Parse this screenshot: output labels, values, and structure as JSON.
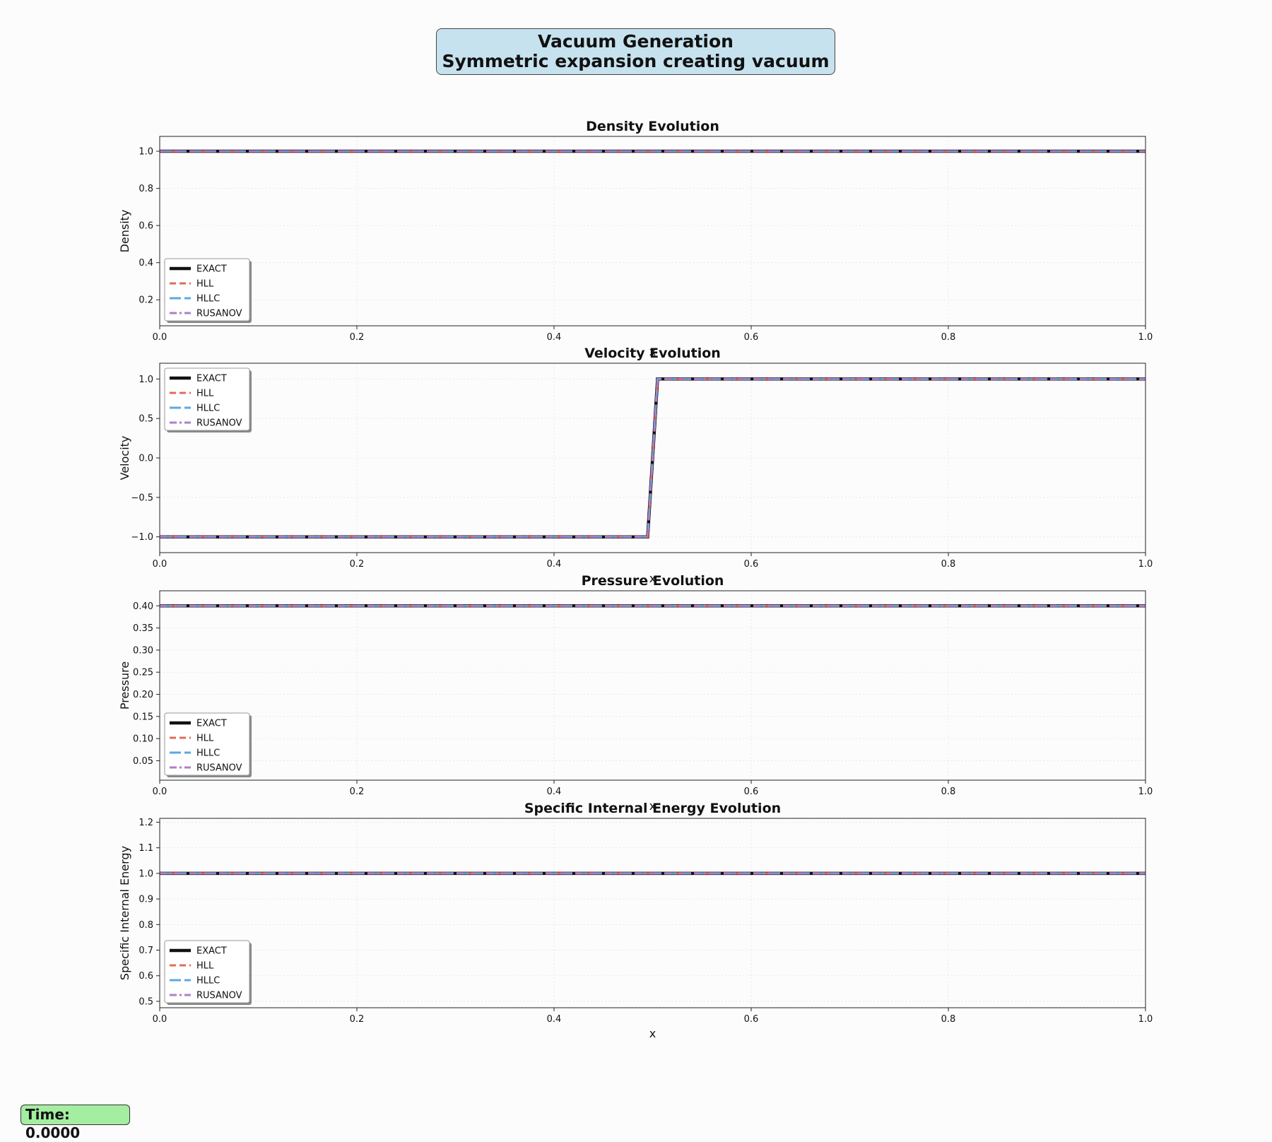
{
  "figure": {
    "title_line1": "Vacuum Generation",
    "title_line2": "Symmetric expansion creating vacuum",
    "title_bg": "#c6e2ee",
    "time_label": "Time:",
    "time_value": "0.0000",
    "time_bg": "#a3eea0"
  },
  "series_style": [
    {
      "name": "EXACT",
      "color": "#111111",
      "dash": "solid"
    },
    {
      "name": "HLL",
      "color": "#e06c5c",
      "dash": "dashed"
    },
    {
      "name": "HLLC",
      "color": "#5aaae0",
      "dash": "longdash"
    },
    {
      "name": "RUSANOV",
      "color": "#b07fc6",
      "dash": "dashdot"
    }
  ],
  "chart_data": [
    {
      "type": "line",
      "title": "Density Evolution",
      "xlabel": "x",
      "ylabel": "Density",
      "xlim": [
        0,
        1
      ],
      "ylim": [
        0.06,
        1.08
      ],
      "xticks": [
        0.0,
        0.2,
        0.4,
        0.6,
        0.8,
        1.0
      ],
      "xtick_labels": [
        "0.0",
        "0.2",
        "0.4",
        "0.6",
        "0.8",
        "1.0"
      ],
      "yticks": [
        0.2,
        0.4,
        0.6,
        0.8,
        1.0
      ],
      "ytick_labels": [
        "0.2",
        "0.4",
        "0.6",
        "0.8",
        "1.0"
      ],
      "grid": true,
      "legend": "lower-left",
      "series": [
        {
          "name": "EXACT",
          "x": [
            0,
            1
          ],
          "y": [
            1.0,
            1.0
          ]
        },
        {
          "name": "HLL",
          "x": [
            0,
            1
          ],
          "y": [
            1.0,
            1.0
          ]
        },
        {
          "name": "HLLC",
          "x": [
            0,
            1
          ],
          "y": [
            1.0,
            1.0
          ]
        },
        {
          "name": "RUSANOV",
          "x": [
            0,
            1
          ],
          "y": [
            1.0,
            1.0
          ]
        }
      ]
    },
    {
      "type": "line",
      "title": "Velocity Evolution",
      "xlabel": "x",
      "ylabel": "Velocity",
      "xlim": [
        0,
        1
      ],
      "ylim": [
        -1.2,
        1.2
      ],
      "xticks": [
        0.0,
        0.2,
        0.4,
        0.6,
        0.8,
        1.0
      ],
      "xtick_labels": [
        "0.0",
        "0.2",
        "0.4",
        "0.6",
        "0.8",
        "1.0"
      ],
      "yticks": [
        -1.0,
        -0.5,
        0.0,
        0.5,
        1.0
      ],
      "ytick_labels": [
        "−1.0",
        "−0.5",
        "0.0",
        "0.5",
        "1.0"
      ],
      "grid": true,
      "legend": "upper-left",
      "series": [
        {
          "name": "EXACT",
          "x": [
            0,
            0.495,
            0.505,
            1
          ],
          "y": [
            -1.0,
            -1.0,
            1.0,
            1.0
          ]
        },
        {
          "name": "HLL",
          "x": [
            0,
            0.495,
            0.505,
            1
          ],
          "y": [
            -1.0,
            -1.0,
            1.0,
            1.0
          ]
        },
        {
          "name": "HLLC",
          "x": [
            0,
            0.495,
            0.505,
            1
          ],
          "y": [
            -1.0,
            -1.0,
            1.0,
            1.0
          ]
        },
        {
          "name": "RUSANOV",
          "x": [
            0,
            0.495,
            0.505,
            1
          ],
          "y": [
            -1.0,
            -1.0,
            1.0,
            1.0
          ]
        }
      ]
    },
    {
      "type": "line",
      "title": "Pressure Evolution",
      "xlabel": "x",
      "ylabel": "Pressure",
      "xlim": [
        0,
        1
      ],
      "ylim": [
        0.006,
        0.434
      ],
      "xticks": [
        0.0,
        0.2,
        0.4,
        0.6,
        0.8,
        1.0
      ],
      "xtick_labels": [
        "0.0",
        "0.2",
        "0.4",
        "0.6",
        "0.8",
        "1.0"
      ],
      "yticks": [
        0.05,
        0.1,
        0.15,
        0.2,
        0.25,
        0.3,
        0.35,
        0.4
      ],
      "ytick_labels": [
        "0.05",
        "0.10",
        "0.15",
        "0.20",
        "0.25",
        "0.30",
        "0.35",
        "0.40"
      ],
      "grid": true,
      "legend": "lower-left",
      "series": [
        {
          "name": "EXACT",
          "x": [
            0,
            1
          ],
          "y": [
            0.4,
            0.4
          ]
        },
        {
          "name": "HLL",
          "x": [
            0,
            1
          ],
          "y": [
            0.4,
            0.4
          ]
        },
        {
          "name": "HLLC",
          "x": [
            0,
            1
          ],
          "y": [
            0.4,
            0.4
          ]
        },
        {
          "name": "RUSANOV",
          "x": [
            0,
            1
          ],
          "y": [
            0.4,
            0.4
          ]
        }
      ]
    },
    {
      "type": "line",
      "title": "Specific Internal Energy Evolution",
      "xlabel": "x",
      "ylabel": "Specific Internal Energy",
      "xlim": [
        0,
        1
      ],
      "ylim": [
        0.475,
        1.215
      ],
      "xticks": [
        0.0,
        0.2,
        0.4,
        0.6,
        0.8,
        1.0
      ],
      "xtick_labels": [
        "0.0",
        "0.2",
        "0.4",
        "0.6",
        "0.8",
        "1.0"
      ],
      "yticks": [
        0.5,
        0.6,
        0.7,
        0.8,
        0.9,
        1.0,
        1.1,
        1.2
      ],
      "ytick_labels": [
        "0.5",
        "0.6",
        "0.7",
        "0.8",
        "0.9",
        "1.0",
        "1.1",
        "1.2"
      ],
      "grid": true,
      "legend": "lower-left",
      "series": [
        {
          "name": "EXACT",
          "x": [
            0,
            1
          ],
          "y": [
            1.0,
            1.0
          ]
        },
        {
          "name": "HLL",
          "x": [
            0,
            1
          ],
          "y": [
            1.0,
            1.0
          ]
        },
        {
          "name": "HLLC",
          "x": [
            0,
            1
          ],
          "y": [
            1.0,
            1.0
          ]
        },
        {
          "name": "RUSANOV",
          "x": [
            0,
            1
          ],
          "y": [
            1.0,
            1.0
          ]
        }
      ]
    }
  ]
}
